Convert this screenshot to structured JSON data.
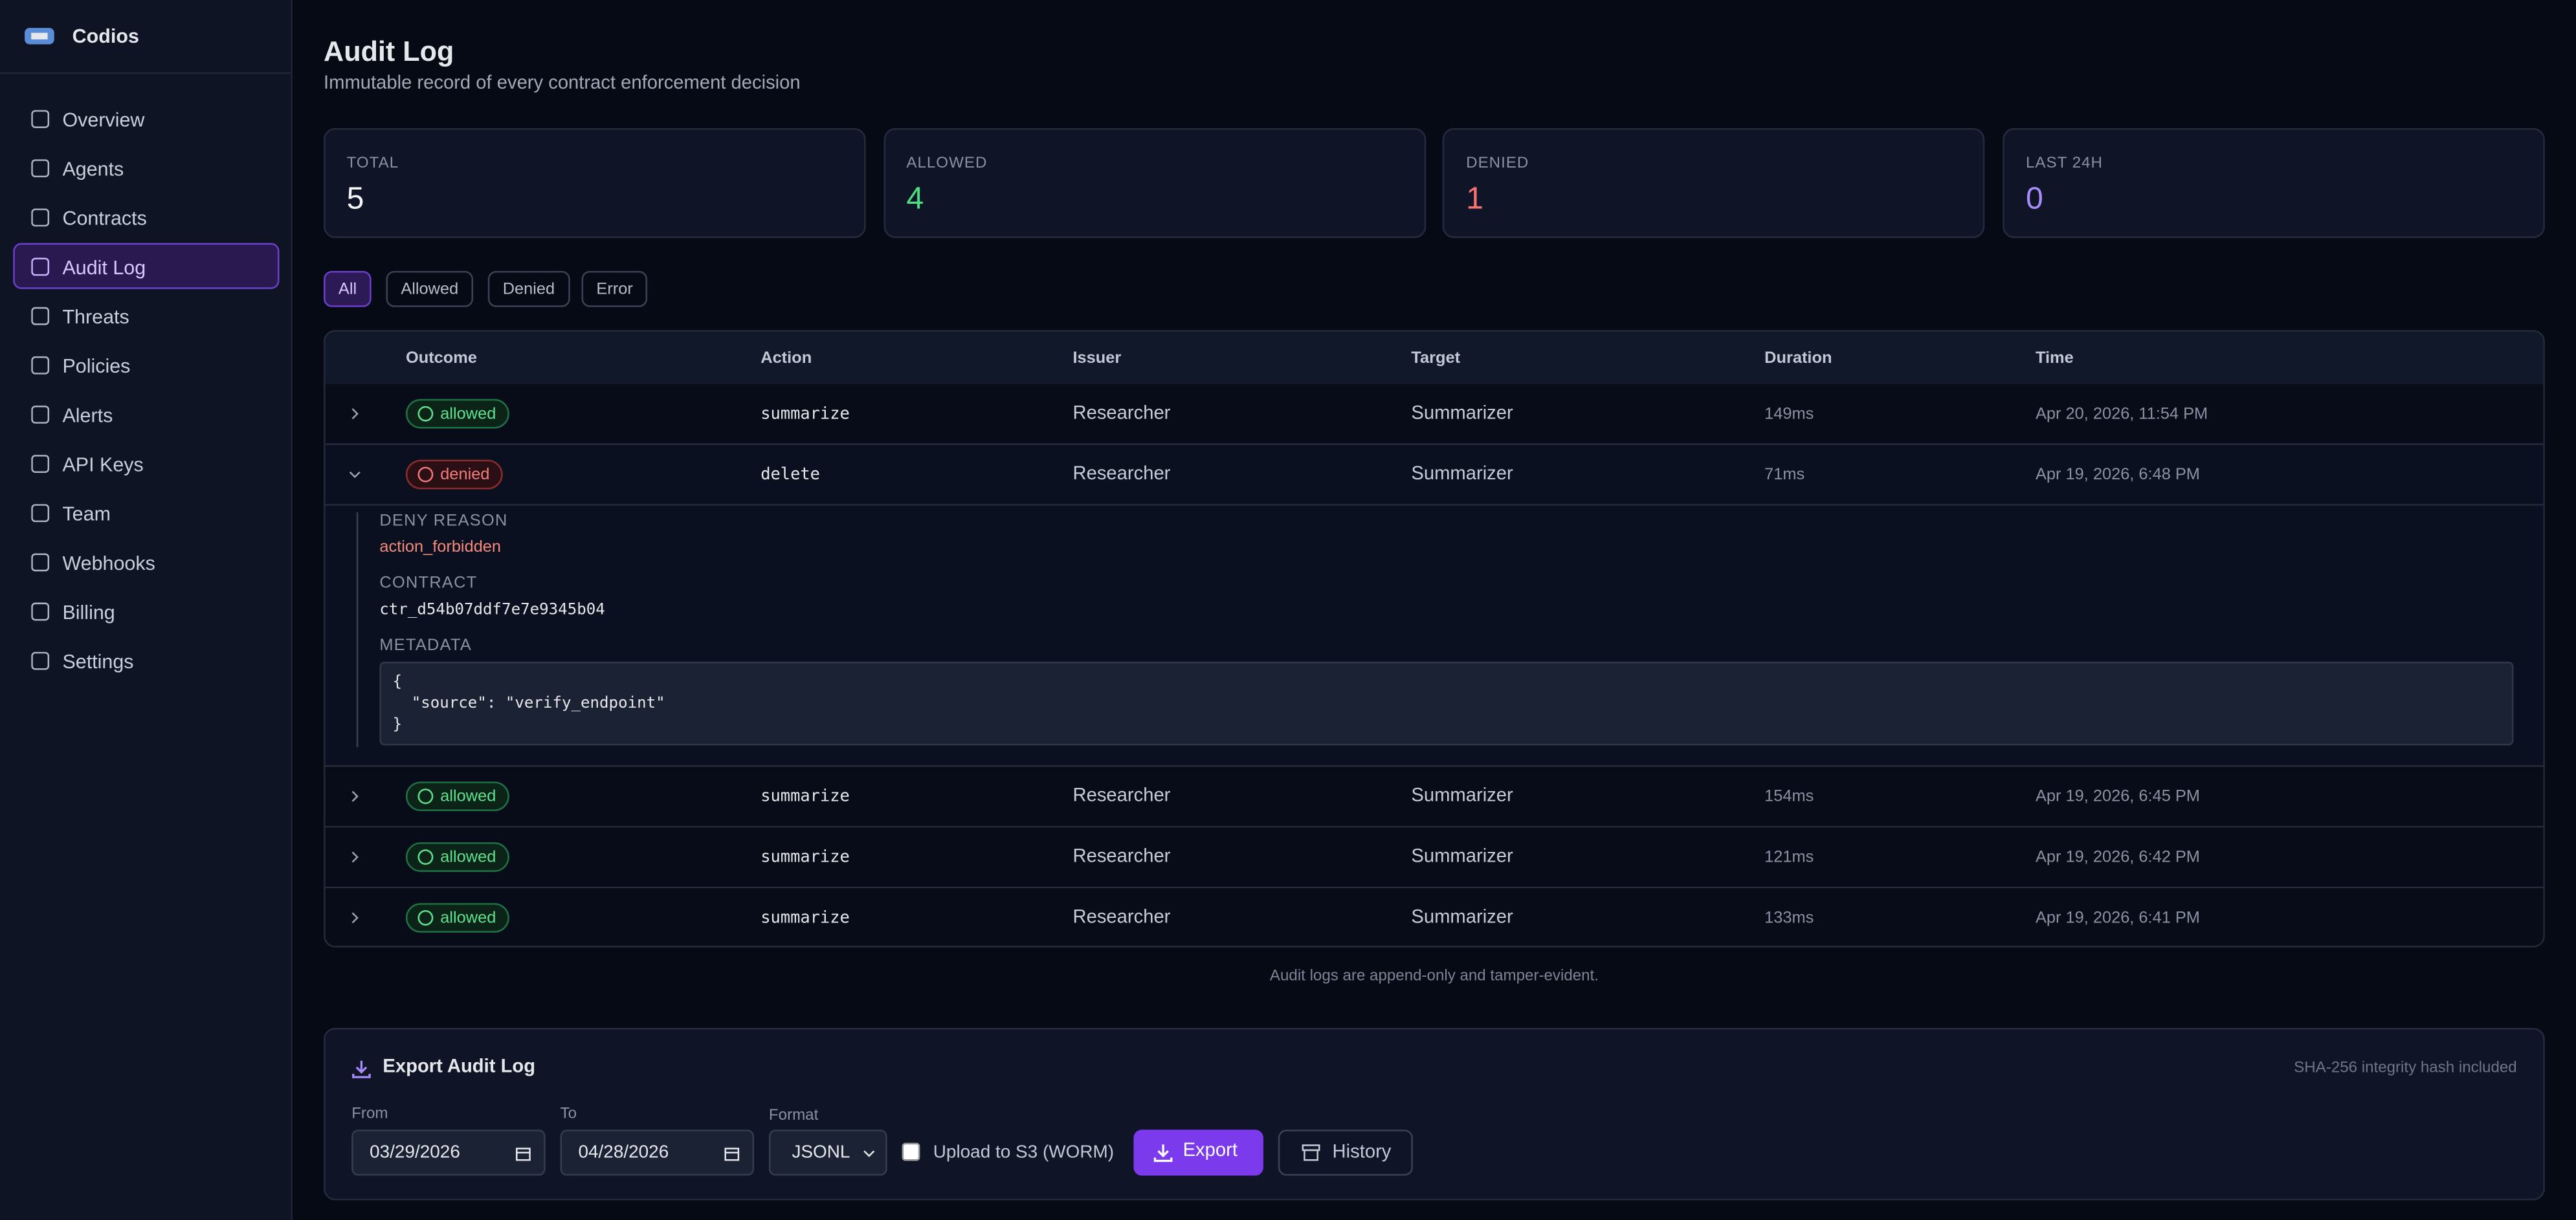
{
  "sidebar": {
    "brand": "Codios",
    "nav": [
      "Overview",
      "Agents",
      "Contracts",
      "Audit Log",
      "Threats",
      "Policies",
      "Alerts",
      "API Keys",
      "Team",
      "Webhooks",
      "Billing",
      "Settings"
    ]
  },
  "header": {
    "title": "Audit Log",
    "subtitle": "Immutable record of every contract enforcement decision"
  },
  "stats": [
    {
      "label": "TOTAL",
      "value": 5
    },
    {
      "label": "ALLOWED",
      "value": 4
    },
    {
      "label": "DENIED",
      "value": 1
    },
    {
      "label": "LAST 24H",
      "value": 0
    }
  ],
  "filters": [
    "All",
    "Allowed",
    "Denied",
    "Error"
  ],
  "table": {
    "columns": [
      "Outcome",
      "Action",
      "Issuer",
      "Target",
      "Duration",
      "Time"
    ],
    "rows": [
      {
        "outcome": "allowed",
        "action": "summarize",
        "issuer": "Researcher",
        "target": "Summarizer",
        "duration": "149ms",
        "time": "Apr 20, 2026, 11:54 PM"
      },
      {
        "outcome": "denied",
        "action": "delete",
        "issuer": "Researcher",
        "target": "Summarizer",
        "duration": "71ms",
        "time": "Apr 19, 2026, 6:48 PM"
      },
      {
        "outcome": "allowed",
        "action": "summarize",
        "issuer": "Researcher",
        "target": "Summarizer",
        "duration": "154ms",
        "time": "Apr 19, 2026, 6:45 PM"
      },
      {
        "outcome": "allowed",
        "action": "summarize",
        "issuer": "Researcher",
        "target": "Summarizer",
        "duration": "121ms",
        "time": "Apr 19, 2026, 6:42 PM"
      },
      {
        "outcome": "allowed",
        "action": "summarize",
        "issuer": "Researcher",
        "target": "Summarizer",
        "duration": "133ms",
        "time": "Apr 19, 2026, 6:41 PM"
      }
    ],
    "expanded": {
      "deny_reason_label": "DENY REASON",
      "deny_reason": "action_forbidden",
      "contract_label": "CONTRACT",
      "contract": "ctr_d54b07ddf7e7e9345b04",
      "metadata_label": "METADATA",
      "metadata": "{\n  \"source\": \"verify_endpoint\"\n}"
    }
  },
  "note": "Audit logs are append-only and tamper-evident.",
  "export": {
    "title": "Export Audit Log",
    "hash_note": "SHA-256 integrity hash included",
    "from_label": "From",
    "from": "03/29/2026",
    "to_label": "To",
    "to": "04/28/2026",
    "format_label": "Format",
    "format": "JSONL",
    "s3_label": "Upload to S3 (WORM)",
    "export_button": "Export",
    "history_button": "History"
  }
}
